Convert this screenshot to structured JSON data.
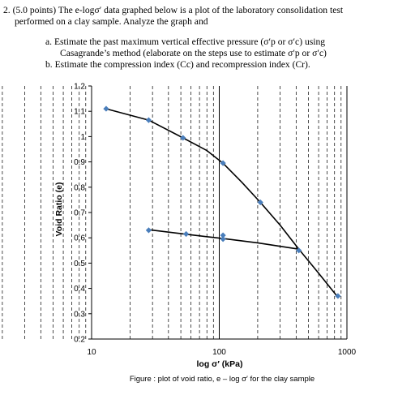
{
  "question": {
    "line1": "2.  (5.0 points) The e-logσ′ data graphed below is a plot of the laboratory consolidation test",
    "line2": "performed on a clay sample. Analyze the graph and",
    "part_a_1": "a.   Estimate the past maximum vertical effective pressure (σ′p or σ′c) using",
    "part_a_2": "Casagrande’s method (elaborate on the steps use to estimate σ′p or σ′c)",
    "part_b": "b.   Estimate the compression index (Cc) and recompression index (Cr)."
  },
  "chart_data": {
    "type": "scatter",
    "xlabel": "log σ′ (kPa)",
    "ylabel": "Void Ratio (e)",
    "caption": "Figure :  plot of void ratio, e – log σ′ for the clay sample",
    "x_scale": "log",
    "xlim": [
      10,
      1000
    ],
    "ylim": [
      0.2,
      1.2
    ],
    "x_ticks": [
      "10",
      "100",
      "1000"
    ],
    "y_ticks": [
      "0.2",
      "0.3",
      "0.4",
      "0.5",
      "0.6",
      "0.7",
      "0.8",
      "0.9",
      "1",
      "1.1",
      "1.2"
    ],
    "grid": "dashed minor verticals",
    "points": [
      {
        "x": 13,
        "y": 1.11
      },
      {
        "x": 28,
        "y": 1.065
      },
      {
        "x": 52,
        "y": 0.995
      },
      {
        "x": 107,
        "y": 0.895
      },
      {
        "x": 210,
        "y": 0.74
      },
      {
        "x": 420,
        "y": 0.55
      },
      {
        "x": 850,
        "y": 0.37
      },
      {
        "x": 28,
        "y": 0.63
      },
      {
        "x": 55,
        "y": 0.615
      },
      {
        "x": 107,
        "y": 0.61
      },
      {
        "x": 107,
        "y": 0.595
      }
    ],
    "curves": [
      {
        "name": "loading",
        "x": [
          13,
          28,
          52,
          80,
          107,
          150,
          210,
          300,
          420,
          600,
          850
        ],
        "y": [
          1.11,
          1.065,
          0.995,
          0.945,
          0.895,
          0.82,
          0.74,
          0.65,
          0.555,
          0.46,
          0.365
        ]
      },
      {
        "name": "unload-reload",
        "x": [
          28,
          55,
          107,
          200,
          420
        ],
        "y": [
          0.632,
          0.614,
          0.597,
          0.58,
          0.555
        ]
      }
    ],
    "colors": {
      "point": "#4a7ebb",
      "line": "#000000",
      "grid": "#000000"
    }
  }
}
